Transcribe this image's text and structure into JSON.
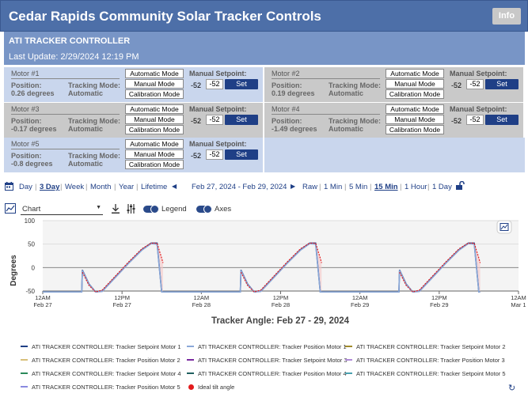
{
  "app": {
    "title": "Cedar Rapids Community Solar Tracker Controls",
    "info_label": "Info"
  },
  "controller": {
    "name": "ATI TRACKER CONTROLLER",
    "last_update": "Last Update: 2/29/2024 12:19 PM"
  },
  "labels": {
    "automatic": "Automatic Mode",
    "manual": "Manual Mode",
    "calibration": "Calibration Mode",
    "manual_setpoint": "Manual Setpoint:",
    "set": "Set",
    "position": "Position:",
    "tracking_mode": "Tracking Mode:"
  },
  "motors": [
    {
      "name": "Motor #1",
      "position": "0.26 degrees",
      "mode": "Automatic",
      "setpoint": "-52",
      "input": "-52",
      "style": "blue"
    },
    {
      "name": "Motor #2",
      "position": "0.19 degrees",
      "mode": "Automatic",
      "setpoint": "-52",
      "input": "-52",
      "style": "grey"
    },
    {
      "name": "Motor #3",
      "position": "-0.17 degrees",
      "mode": "Automatic",
      "setpoint": "-52",
      "input": "-52",
      "style": "grey"
    },
    {
      "name": "Motor #4",
      "position": "-1.49 degrees",
      "mode": "Automatic",
      "setpoint": "-52",
      "input": "-52",
      "style": "grey"
    },
    {
      "name": "Motor #5",
      "position": "-0.8 degrees",
      "mode": "Automatic",
      "setpoint": "-52",
      "input": "-52",
      "style": "blue"
    }
  ],
  "timebar": {
    "ranges": [
      "Day",
      "3 Day",
      "Week",
      "Month",
      "Year",
      "Lifetime"
    ],
    "active_range": "3 Day",
    "date_range": "Feb 27, 2024 - Feb 29, 2024",
    "intervals": [
      "Raw",
      "1 Min",
      "5 Min",
      "15 Min",
      "1 Hour",
      "1 Day"
    ],
    "active_interval": "15 Min",
    "icons": [
      "calendar-icon",
      "chevron-left-icon",
      "chevron-right-icon",
      "unlock-icon"
    ]
  },
  "toolbar": {
    "chart_type": "Chart",
    "legend_label": "Legend",
    "axes_label": "Axes",
    "legend_on": true,
    "axes_on": true
  },
  "chart_data": {
    "type": "line",
    "title": "Tracker Angle: Feb 27 - 29, 2024",
    "ylabel": "Degrees",
    "xlabel": "",
    "ylim": [
      -50,
      100
    ],
    "yticks": [
      "100",
      "50",
      "0",
      "-50"
    ],
    "xticks": [
      {
        "time": "12AM",
        "date": "Feb 27"
      },
      {
        "time": "12PM",
        "date": "Feb 27"
      },
      {
        "time": "12AM",
        "date": "Feb 28"
      },
      {
        "time": "12PM",
        "date": "Feb 28"
      },
      {
        "time": "12AM",
        "date": "Feb 29"
      },
      {
        "time": "12PM",
        "date": "Feb 29"
      },
      {
        "time": "12AM",
        "date": "Mar 1"
      }
    ],
    "x_hours": [
      0,
      5.9,
      6.0,
      7.0,
      8.0,
      9.0,
      11.0,
      13.0,
      15.0,
      16.4,
      17.3,
      18.0,
      18.2,
      24,
      29.9,
      30.0,
      31.0,
      32.0,
      33.0,
      35.0,
      37.0,
      39.0,
      40.4,
      41.3,
      42.0,
      42.2,
      48,
      53.9,
      54.0,
      55.0,
      56.0,
      57.0,
      59.0,
      61.0,
      63.0,
      64.4,
      65.3,
      66.0,
      66.2
    ],
    "series": [
      {
        "name": "ATI TRACKER CONTROLLER: Tracker Setpoint Motor 1",
        "color": "#1f3f86",
        "values": [
          -52,
          -52,
          -5,
          -35,
          -52,
          -50,
          -20,
          10,
          38,
          52,
          52,
          -52,
          -52,
          -52,
          -52,
          -5,
          -35,
          -52,
          -50,
          -20,
          10,
          38,
          52,
          52,
          -52,
          -52,
          -52,
          -52,
          -5,
          -35,
          -52,
          -50,
          -20,
          10,
          38,
          52,
          52,
          -52,
          -52
        ]
      },
      {
        "name": "ATI TRACKER CONTROLLER: Tracker Position Motor 1",
        "color": "#8aa8d8",
        "values": [
          -52,
          -52,
          -6,
          -36,
          -52,
          -51,
          -21,
          9,
          37,
          51,
          50,
          -52,
          -52,
          -52,
          -52,
          -6,
          -36,
          -52,
          -51,
          -21,
          9,
          37,
          51,
          50,
          -52,
          -52,
          -52,
          -52,
          -6,
          -36,
          -52,
          -51,
          -21,
          9,
          37,
          51,
          50,
          -52,
          -52
        ]
      },
      {
        "name": "Ideal tilt angle",
        "color": "#e31a1c",
        "values": [
          null,
          null,
          -10,
          -38,
          -52,
          -48,
          -18,
          12,
          40,
          52,
          52,
          20,
          10,
          null,
          null,
          -10,
          -38,
          -52,
          -48,
          -18,
          12,
          40,
          52,
          52,
          20,
          10,
          null,
          null,
          -10,
          -38,
          -52,
          -48,
          -18,
          12,
          40,
          52,
          52,
          20,
          10
        ]
      }
    ]
  },
  "legend": [
    {
      "label": "ATI TRACKER CONTROLLER: Tracker Setpoint Motor 1",
      "color": "#1f3f86"
    },
    {
      "label": "ATI TRACKER CONTROLLER: Tracker Position Motor 1",
      "color": "#8aa8d8"
    },
    {
      "label": "ATI TRACKER CONTROLLER: Tracker Setpoint Motor 2",
      "color": "#a08a2a"
    },
    {
      "label": "ATI TRACKER CONTROLLER: Tracker Position Motor 2",
      "color": "#d8c07a"
    },
    {
      "label": "ATI TRACKER CONTROLLER: Tracker Setpoint Motor 3",
      "color": "#7a2aa0"
    },
    {
      "label": "ATI TRACKER CONTROLLER: Tracker Position Motor 3",
      "color": "#b08ad8"
    },
    {
      "label": "ATI TRACKER CONTROLLER: Tracker Setpoint Motor 4",
      "color": "#2a8a5a"
    },
    {
      "label": "ATI TRACKER CONTROLLER: Tracker Position Motor 4",
      "color": "#1f5f5f"
    },
    {
      "label": "ATI TRACKER CONTROLLER: Tracker Setpoint Motor 5",
      "color": "#4aa0b0"
    },
    {
      "label": "ATI TRACKER CONTROLLER: Tracker Position Motor 5",
      "color": "#8a8ae0"
    },
    {
      "label": "Ideal tilt angle",
      "color": "#e31a1c",
      "dot": true
    }
  ]
}
